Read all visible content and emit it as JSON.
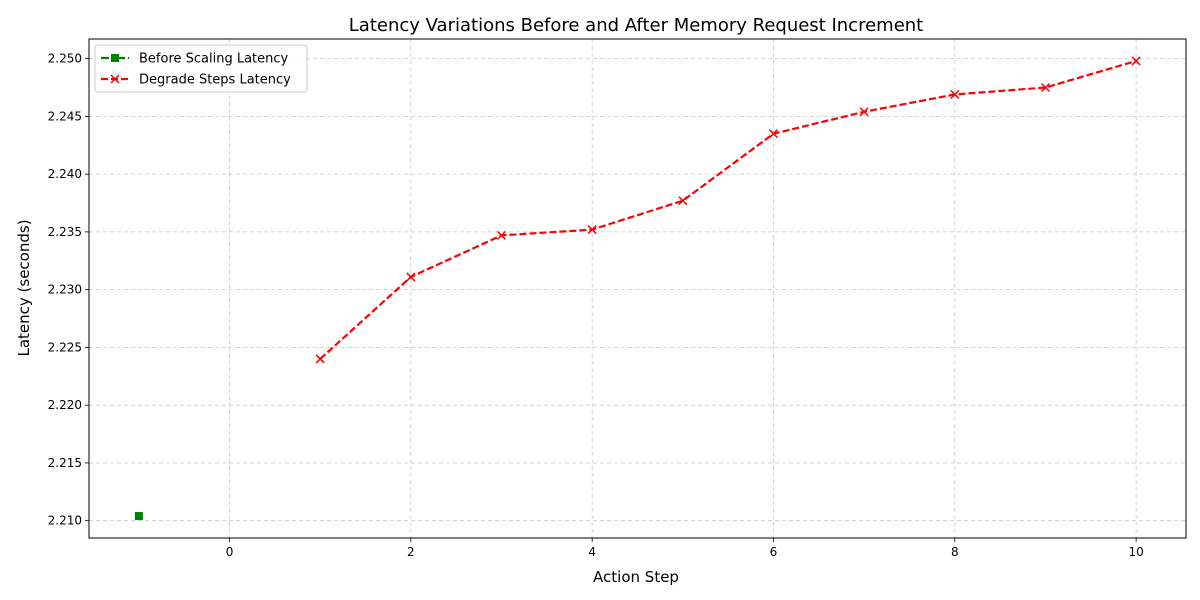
{
  "chart_data": {
    "type": "line",
    "title": "Latency Variations Before and After Memory Request Increment",
    "xlabel": "Action Step",
    "ylabel": "Latency (seconds)",
    "xlim": [
      -1.55,
      10.55
    ],
    "ylim": [
      2.2085,
      2.2517
    ],
    "xticks": [
      0,
      2,
      4,
      6,
      8,
      10
    ],
    "yticks": [
      2.21,
      2.215,
      2.22,
      2.225,
      2.23,
      2.235,
      2.24,
      2.245,
      2.25
    ],
    "ytick_labels": [
      "2.210",
      "2.215",
      "2.220",
      "2.225",
      "2.230",
      "2.235",
      "2.240",
      "2.245",
      "2.250"
    ],
    "grid": true,
    "legend_position": "top-left",
    "series": [
      {
        "name": "Before Scaling Latency",
        "color": "#008000",
        "marker": "square",
        "line_style": "dash-dot",
        "x": [
          -1
        ],
        "y": [
          2.2104
        ]
      },
      {
        "name": "Degrade Steps Latency",
        "color": "#ff0000",
        "marker": "x",
        "line_style": "dashed",
        "x": [
          1,
          2,
          3,
          4,
          5,
          6,
          7,
          8,
          9,
          10
        ],
        "y": [
          2.224,
          2.2311,
          2.2347,
          2.2352,
          2.2377,
          2.2435,
          2.2454,
          2.2469,
          2.2475,
          2.2498
        ]
      }
    ]
  }
}
